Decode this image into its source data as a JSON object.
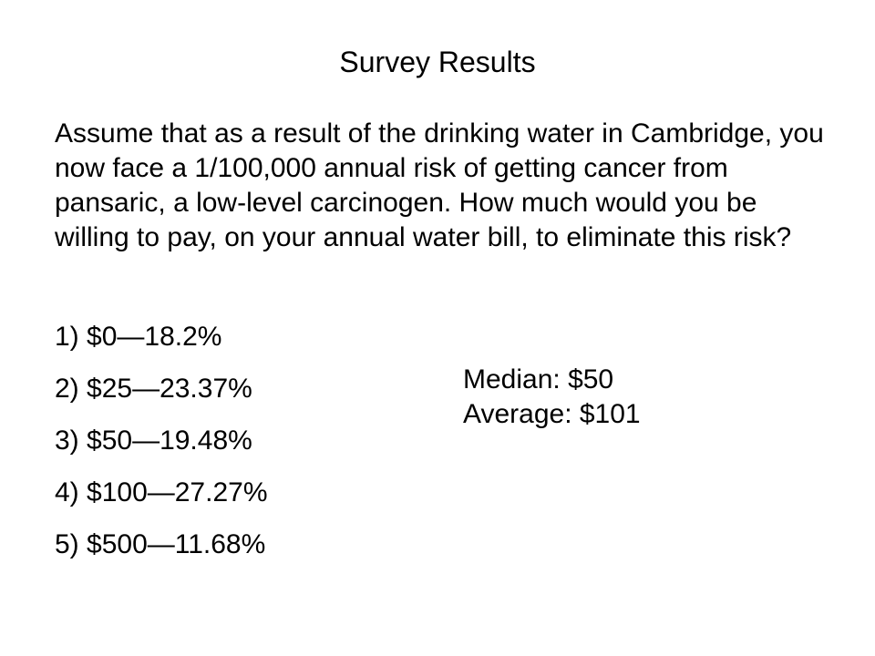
{
  "title": "Survey Results",
  "question": "Assume that as a result of the drinking water in Cambridge, you now face a 1/100,000 annual risk of getting cancer from pansaric, a low-level carcinogen. How much would you be willing to pay, on your annual water bill, to eliminate this risk?",
  "options": [
    "1) $0—18.2%",
    "2) $25—23.37%",
    "3) $50—19.48%",
    "4) $100—27.27%",
    "5) $500—11.68%"
  ],
  "stats": {
    "median": "Median: $50",
    "average": "Average: $101"
  }
}
